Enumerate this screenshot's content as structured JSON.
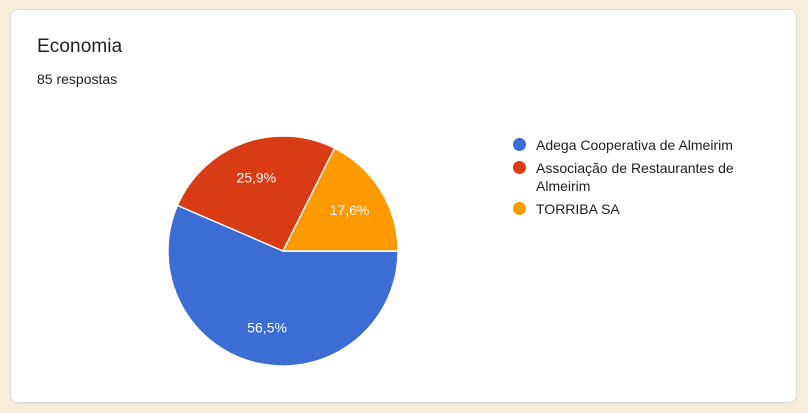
{
  "card": {
    "title": "Economia",
    "subtitle": "85 respostas"
  },
  "chart_data": {
    "type": "pie",
    "title": "Economia",
    "categories": [
      "Adega Cooperativa de Almeirim",
      "Associação de Restaurantes de Almeirim",
      "TORRIBA SA"
    ],
    "values": [
      56.5,
      25.9,
      17.6
    ],
    "labels": [
      "56,5%",
      "25,9%",
      "17,6%"
    ],
    "colors": [
      "#3c6dd5",
      "#d93b14",
      "#ff9900"
    ],
    "legend_position": "right",
    "start_angle_deg": 0,
    "direction": "clockwise",
    "slice_border_color": "#ffffff"
  },
  "theme": {
    "page_bg": "#f6eedb",
    "card_bg": "#ffffff",
    "card_border": "#dadce0",
    "text_color": "#202124"
  }
}
